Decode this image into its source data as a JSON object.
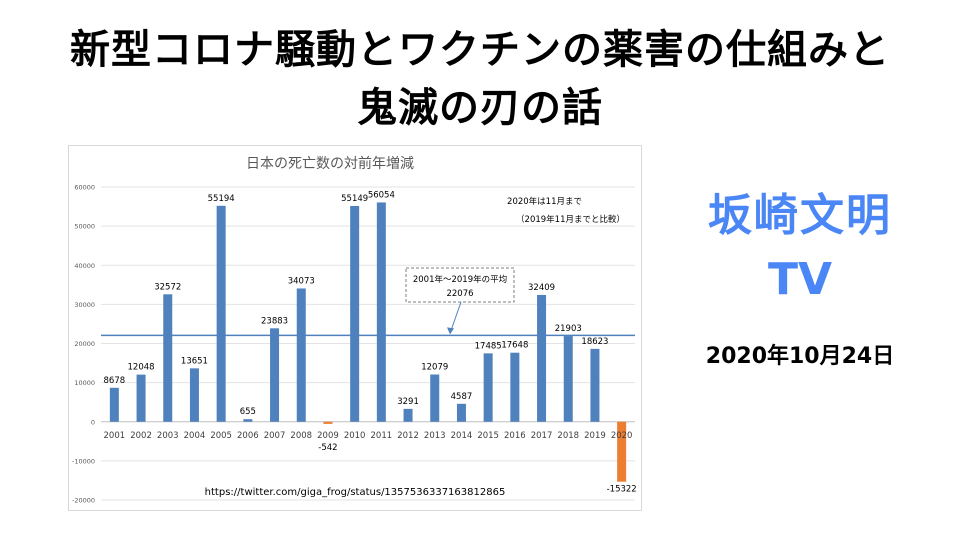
{
  "thumbnail": {
    "headline_line1": "新型コロナ騒動とワクチンの薬害の仕組みと",
    "headline_line2": "鬼滅の刃の話",
    "channel_name": "坂崎文明",
    "channel_suffix": "TV",
    "date": "2020年10月24日"
  },
  "colors": {
    "bar_positive": "#4f81bd",
    "bar_negative": "#ed7d31",
    "average_line": "#4f81bd",
    "channel_accent": "#4a86f5"
  },
  "chart_data": {
    "type": "bar",
    "title": "日本の死亡数の対前年増減",
    "categories": [
      "2001",
      "2002",
      "2003",
      "2004",
      "2005",
      "2006",
      "2007",
      "2008",
      "2009",
      "2010",
      "2011",
      "2012",
      "2013",
      "2014",
      "2015",
      "2016",
      "2017",
      "2018",
      "2019",
      "2020"
    ],
    "values": [
      8678,
      12048,
      32572,
      13651,
      55194,
      655,
      23883,
      34073,
      -542,
      55149,
      56054,
      3291,
      12079,
      4587,
      17485,
      17648,
      32409,
      21903,
      18623,
      -15322
    ],
    "ylim": [
      -20000,
      60000
    ],
    "yticks": [
      -20000,
      -10000,
      0,
      10000,
      20000,
      30000,
      40000,
      50000,
      60000
    ],
    "grid": true,
    "average": {
      "value": 22076,
      "label_line1": "2001年〜2019年の平均",
      "label_line2": "22076"
    },
    "note_line1": "2020年は11月まで",
    "note_line2": "（2019年11月までと比較）",
    "source": "https://twitter.com/giga_frog/status/1357536337163812865"
  }
}
